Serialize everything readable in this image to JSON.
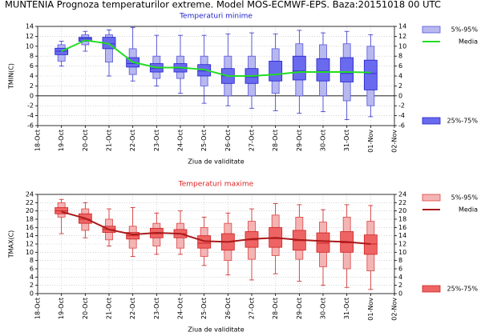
{
  "header": "MUNTENIA  Prognoza temperaturilor extreme.  Model MOS-ECMWF-EPS. Baza:20151018 00 UTC",
  "chart_data": [
    {
      "type": "box",
      "title": "Temperaturi minime",
      "title_color": "#2222cc",
      "ylabel": "TMIN(C)",
      "xlabel": "Ziua de validitate",
      "categories": [
        "18-Oct",
        "19-Oct",
        "20-Oct",
        "21-Oct",
        "22-Oct",
        "23-Oct",
        "24-Oct",
        "25-Oct",
        "26-Oct",
        "27-Oct",
        "28-Oct",
        "29-Oct",
        "30-Oct",
        "31-Oct",
        "01-Nov",
        "02-Nov"
      ],
      "whisker_low": [
        null,
        6,
        9,
        4,
        3,
        2,
        0.5,
        -1.5,
        -2,
        -2.5,
        -3,
        -3.5,
        -3.2,
        -4.8,
        -4.2,
        null
      ],
      "whisker_high": [
        null,
        11,
        13,
        13.3,
        13.8,
        12.2,
        12.2,
        12.2,
        12.5,
        12.7,
        12.5,
        13.2,
        12.7,
        13,
        12.3,
        null
      ],
      "median": [
        null,
        9,
        11.5,
        10.5,
        6.5,
        5.5,
        5.5,
        5,
        4,
        3.8,
        4.3,
        5,
        5,
        4.5,
        4.5,
        null
      ],
      "whisker_color": "#3333cc",
      "series": [
        {
          "name": "5%-95%",
          "color": "#b8b8f0",
          "edge": "#5555dd",
          "low": [
            null,
            7,
            10.3,
            6.8,
            4.3,
            3.5,
            3.5,
            2,
            0,
            0,
            0.5,
            0,
            0,
            -1,
            -2,
            null
          ],
          "high": [
            null,
            10.3,
            12.3,
            12.3,
            9.5,
            8,
            8,
            8,
            8,
            8,
            9.5,
            10.5,
            10.3,
            10.5,
            10,
            null
          ]
        },
        {
          "name": "Media",
          "color": "#22dd22",
          "values": [
            null,
            9,
            11.2,
            10.5,
            6.8,
            5.7,
            5.7,
            5.3,
            4,
            4,
            4.3,
            4.8,
            4.8,
            4.8,
            4.7,
            null
          ]
        },
        {
          "name": "25%-75%",
          "color": "#6a6aee",
          "edge": "#2222cc",
          "low": [
            null,
            8.3,
            11,
            9.5,
            5.8,
            4.8,
            4.8,
            4,
            2.5,
            2.5,
            3,
            3.2,
            3,
            2.8,
            1.2,
            null
          ],
          "high": [
            null,
            9.6,
            11.8,
            11.8,
            7.7,
            6.5,
            6.5,
            6.3,
            5.5,
            5.5,
            7,
            8,
            7.5,
            7.7,
            7.2,
            null
          ]
        }
      ],
      "ylim": [
        -6,
        14
      ],
      "yticks": [
        -6,
        -4,
        -2,
        0,
        2,
        4,
        6,
        8,
        10,
        12,
        14
      ],
      "grid": true,
      "legend": "right"
    },
    {
      "type": "box",
      "title": "Temperaturi maxime",
      "title_color": "#dd2222",
      "ylabel": "TMAX(C)",
      "xlabel": "Ziua de validitate",
      "categories": [
        "18-Oct",
        "19-Oct",
        "20-Oct",
        "21-Oct",
        "22-Oct",
        "23-Oct",
        "24-Oct",
        "25-Oct",
        "26-Oct",
        "27-Oct",
        "28-Oct",
        "29-Oct",
        "30-Oct",
        "31-Oct",
        "01-Nov",
        "02-Nov"
      ],
      "whisker_low": [
        null,
        14.5,
        13.5,
        11.5,
        9,
        9.5,
        9.5,
        6.8,
        4.5,
        3.3,
        4.8,
        3,
        2,
        1.5,
        1,
        null
      ],
      "whisker_high": [
        null,
        22.8,
        22,
        20.5,
        20.8,
        19.5,
        20,
        18.5,
        19.5,
        20.5,
        21.8,
        21.5,
        20.3,
        21.5,
        21.3,
        null
      ],
      "median": [
        null,
        20,
        18,
        15.5,
        14,
        14.5,
        14.5,
        12.2,
        12.5,
        13,
        13.3,
        12.8,
        12.2,
        12.3,
        12,
        null
      ],
      "whisker_color": "#cc2222",
      "series": [
        {
          "name": "5%-95%",
          "color": "#f4b4b4",
          "edge": "#dd4444",
          "low": [
            null,
            18.5,
            15.3,
            13,
            11,
            11.5,
            11,
            9,
            8,
            8.3,
            9.2,
            8.3,
            6.5,
            6,
            5.5,
            null
          ],
          "high": [
            null,
            22,
            20.5,
            18,
            16.3,
            17,
            17,
            16,
            17,
            17.5,
            19,
            18.5,
            17.3,
            18.5,
            17.5,
            null
          ]
        },
        {
          "name": "Media",
          "color": "#aa1a1a",
          "values": [
            null,
            19.8,
            18.2,
            15.5,
            14.3,
            14.7,
            14.5,
            12.7,
            12.5,
            13.2,
            13.5,
            13,
            12.7,
            12.5,
            12,
            null
          ]
        },
        {
          "name": "25%-75%",
          "color": "#ee6464",
          "edge": "#cc2222",
          "low": [
            null,
            19.3,
            17,
            14.8,
            13.2,
            13.5,
            13.5,
            11,
            10.5,
            11.2,
            11.2,
            10.5,
            10,
            10,
            9.5,
            null
          ],
          "high": [
            null,
            20.8,
            19.3,
            16.3,
            14.8,
            15.8,
            15.5,
            14,
            14.5,
            15,
            16,
            15.3,
            14.7,
            15,
            14.2,
            null
          ]
        }
      ],
      "ylim": [
        0,
        24
      ],
      "yticks": [
        0,
        2,
        4,
        6,
        8,
        10,
        12,
        14,
        16,
        18,
        20,
        22,
        24
      ],
      "grid": true,
      "legend": "right"
    }
  ]
}
